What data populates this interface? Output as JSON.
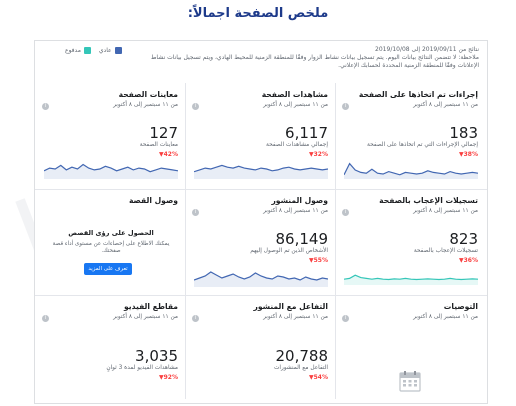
{
  "heading": "ملخص الصفحة اجمالاً:",
  "info": {
    "line1": "نتائج من 2019/09/11 إلى 2019/10/08",
    "line2": "ملاحظة: لا تتضمن النتائج بيانات اليوم. يتم تسجيل بيانات نشاط الزوار وفقًا للمنطقة الزمنية للمحيط الهادي، ويتم تسجيل بيانات نشاط الإعلانات وفقًا للمنطقة الزمنية المحددة لحسابك الإعلاني."
  },
  "legend": {
    "organic": "عادي",
    "paid": "مدفوع",
    "organic_color": "#4267b2",
    "paid_color": "#34c6b8"
  },
  "date_range": "من ١١ سبتمبر إلى ٨ أكتوبر",
  "info_icon": "i",
  "cards": [
    {
      "title": "إجراءات تم اتخاذها على الصفحة",
      "value": "183",
      "sub": "إجمالي الإجراءات التي تم اتخاذها على الصفحة",
      "change": "38%",
      "color": "#4267b2",
      "series": [
        0.2,
        0.9,
        0.5,
        0.35,
        0.3,
        0.55,
        0.3,
        0.25,
        0.4,
        0.3,
        0.2,
        0.35,
        0.3,
        0.25,
        0.3,
        0.45,
        0.35,
        0.3,
        0.25,
        0.4,
        0.3,
        0.25,
        0.3,
        0.35,
        0.3
      ]
    },
    {
      "title": "مشاهدات الصفحة",
      "value": "6,117",
      "sub": "إجمالي مشاهدات الصفحة",
      "change": "32%",
      "color": "#4267b2",
      "series": [
        0.35,
        0.45,
        0.55,
        0.5,
        0.6,
        0.7,
        0.6,
        0.55,
        0.65,
        0.55,
        0.5,
        0.45,
        0.55,
        0.5,
        0.4,
        0.45,
        0.55,
        0.6,
        0.5,
        0.45,
        0.5,
        0.55,
        0.5,
        0.45,
        0.5
      ]
    },
    {
      "title": "معاينات الصفحة",
      "value": "127",
      "sub": "معاينات الصفحة",
      "change": "42%",
      "color": "#4267b2",
      "series": [
        0.4,
        0.55,
        0.5,
        0.7,
        0.45,
        0.6,
        0.5,
        0.75,
        0.55,
        0.45,
        0.5,
        0.65,
        0.55,
        0.4,
        0.5,
        0.6,
        0.45,
        0.55,
        0.5,
        0.35,
        0.45,
        0.55,
        0.5,
        0.45,
        0.4
      ]
    },
    {
      "title": "تسجيلات الإعجاب بالصفحة",
      "value": "823",
      "sub": "تسجيلات الإعجاب بالصفحة",
      "change": "36%",
      "color": "#34c6b8",
      "series": [
        0.3,
        0.35,
        0.55,
        0.4,
        0.35,
        0.3,
        0.35,
        0.3,
        0.28,
        0.32,
        0.3,
        0.35,
        0.3,
        0.28,
        0.3,
        0.32,
        0.3,
        0.28,
        0.3,
        0.35,
        0.3,
        0.28,
        0.3,
        0.32,
        0.3
      ]
    },
    {
      "title": "وصول المنشور",
      "value": "86,149",
      "sub": "الأشخاص الذين تم الوصول إليهم",
      "change": "55%",
      "color": "#4267b2",
      "series": [
        0.3,
        0.4,
        0.5,
        0.7,
        0.55,
        0.4,
        0.5,
        0.6,
        0.45,
        0.35,
        0.45,
        0.65,
        0.5,
        0.4,
        0.35,
        0.5,
        0.45,
        0.35,
        0.4,
        0.3,
        0.45,
        0.35,
        0.3,
        0.4,
        0.35
      ]
    },
    {
      "title": "وصول القصة",
      "promo": true,
      "promo_title": "الحصول على رؤى القصص",
      "promo_body": "يمكنك الاطلاع على إحصاءات عن مستوى أداء قصة صفحتك.",
      "promo_button": "تعرف على المزيد"
    },
    {
      "title": "التوصيات",
      "calendar": true
    },
    {
      "title": "التفاعل مع المنشور",
      "value": "20,788",
      "sub": "التفاعل مع المنشورات",
      "change": "54%",
      "color": "#4267b2"
    },
    {
      "title": "مقاطع الفيديو",
      "value": "3,035",
      "sub": "مشاهدات الفيديو لمدة 3 ثوانٍ",
      "change": "92%",
      "color": "#4267b2"
    }
  ]
}
